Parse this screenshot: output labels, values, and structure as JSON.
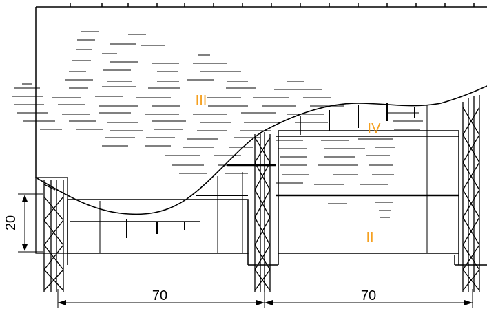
{
  "labels": {
    "region_iii": "III",
    "region_iv": "IV",
    "region_ii": "II",
    "dim_height": "20",
    "dim_left_width": "70",
    "dim_right_width": "70"
  },
  "colors": {
    "line": "#000000",
    "label_accent": "#f5a020",
    "background": "#ffffff"
  }
}
